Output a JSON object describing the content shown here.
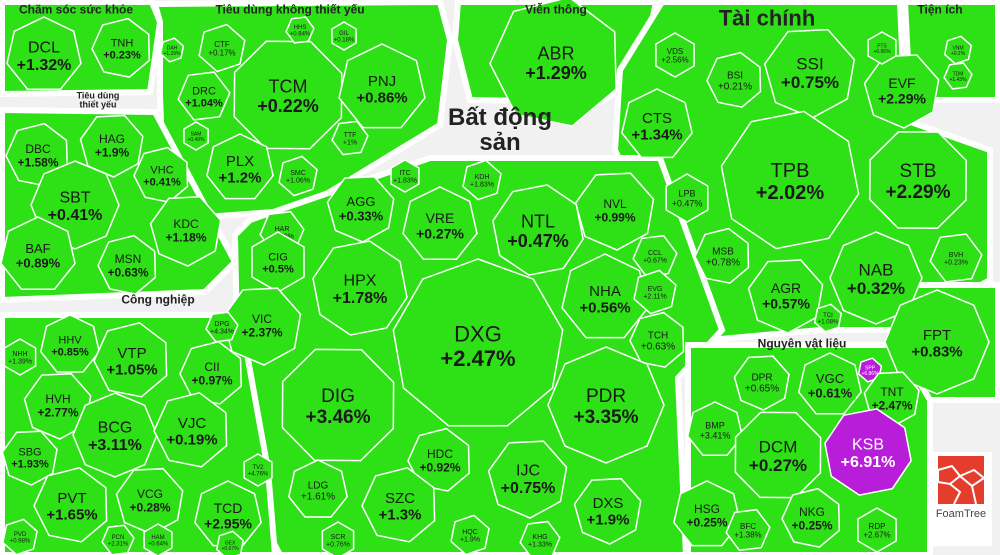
{
  "brand": "FoamTree",
  "colors": {
    "gain": "#2ee016",
    "strong_gain": "#b81dd9",
    "border": "#ffffff",
    "label": "#1a1a1a"
  },
  "sectors": [
    {
      "key": "healthcare",
      "title": "Chăm sóc sức khỏe"
    },
    {
      "key": "nonessential",
      "title": "Tiêu dùng không thiết yếu"
    },
    {
      "key": "telecom",
      "title": "Viễn thông"
    },
    {
      "key": "finance",
      "title": "Tài chính"
    },
    {
      "key": "utilities",
      "title": "Tiện ích"
    },
    {
      "key": "staples",
      "title": "Tiêu dùng thiết yếu"
    },
    {
      "key": "realestate",
      "title": "Bất động sản"
    },
    {
      "key": "industrial",
      "title": "Công nghiệp"
    },
    {
      "key": "materials",
      "title": "Nguyên vật liệu"
    }
  ],
  "chart_data": {
    "type": "treemap",
    "metric": "% change",
    "tiles": [
      {
        "ticker": "DCL",
        "change": "+1.32%",
        "sector": "Chăm sóc sức khỏe"
      },
      {
        "ticker": "TNH",
        "change": "+0.23%",
        "sector": "Chăm sóc sức khỏe"
      },
      {
        "ticker": "TCM",
        "change": "+0.22%",
        "sector": "Tiêu dùng không thiết yếu"
      },
      {
        "ticker": "PNJ",
        "change": "+0.86%",
        "sector": "Tiêu dùng không thiết yếu"
      },
      {
        "ticker": "CTF",
        "change": "+0.17%",
        "sector": "Tiêu dùng không thiết yếu"
      },
      {
        "ticker": "DRC",
        "change": "+1.04%",
        "sector": "Tiêu dùng không thiết yếu"
      },
      {
        "ticker": "PLX",
        "change": "+1.2%",
        "sector": "Tiêu dùng không thiết yếu"
      },
      {
        "ticker": "SMC",
        "change": "+1.06%",
        "sector": "Tiêu dùng không thiết yếu"
      },
      {
        "ticker": "TTF",
        "change": "+1%",
        "sector": "Tiêu dùng không thiết yếu"
      },
      {
        "ticker": "SAM",
        "change": "+0.49%",
        "sector": "Tiêu dùng không thiết yếu"
      },
      {
        "ticker": "DAH",
        "change": "+1.29%",
        "sector": "Tiêu dùng không thiết yếu"
      },
      {
        "ticker": "HHS",
        "change": "+0.84%",
        "sector": "Tiêu dùng không thiết yếu"
      },
      {
        "ticker": "GIL",
        "change": "+0.18%",
        "sector": "Tiêu dùng không thiết yếu"
      },
      {
        "ticker": "ABR",
        "change": "+1.29%",
        "sector": "Viễn thông"
      },
      {
        "ticker": "SSI",
        "change": "+0.75%",
        "sector": "Tài chính"
      },
      {
        "ticker": "VDS",
        "change": "+2.56%",
        "sector": "Tài chính"
      },
      {
        "ticker": "BSI",
        "change": "+0.21%",
        "sector": "Tài chính"
      },
      {
        "ticker": "EVF",
        "change": "+2.29%",
        "sector": "Tài chính"
      },
      {
        "ticker": "CTS",
        "change": "+1.34%",
        "sector": "Tài chính"
      },
      {
        "ticker": "TPB",
        "change": "+2.02%",
        "sector": "Tài chính"
      },
      {
        "ticker": "STB",
        "change": "+2.29%",
        "sector": "Tài chính"
      },
      {
        "ticker": "LPB",
        "change": "+0.47%",
        "sector": "Tài chính"
      },
      {
        "ticker": "MSB",
        "change": "+0.78%",
        "sector": "Tài chính"
      },
      {
        "ticker": "AGR",
        "change": "+0.57%",
        "sector": "Tài chính"
      },
      {
        "ticker": "NAB",
        "change": "+0.32%",
        "sector": "Tài chính"
      },
      {
        "ticker": "TCI",
        "change": "+1.08%",
        "sector": "Tài chính"
      },
      {
        "ticker": "BVH",
        "change": "+0.23%",
        "sector": "Tài chính"
      },
      {
        "ticker": "FTS",
        "change": "+0.96%",
        "sector": "Tài chính"
      },
      {
        "ticker": "VNM",
        "change": "+0.2%",
        "sector": "Tiện ích"
      },
      {
        "ticker": "TDM",
        "change": "+1.43%",
        "sector": "Tiện ích"
      },
      {
        "ticker": "FPT",
        "change": "+0.83%",
        "sector": "Tiện ích"
      },
      {
        "ticker": "DBC",
        "change": "+1.58%",
        "sector": "Tiêu dùng thiết yếu"
      },
      {
        "ticker": "HAG",
        "change": "+1.9%",
        "sector": "Tiêu dùng thiết yếu"
      },
      {
        "ticker": "SBT",
        "change": "+0.41%",
        "sector": "Tiêu dùng thiết yếu"
      },
      {
        "ticker": "VHC",
        "change": "+0.41%",
        "sector": "Tiêu dùng thiết yếu"
      },
      {
        "ticker": "KDC",
        "change": "+1.18%",
        "sector": "Tiêu dùng thiết yếu"
      },
      {
        "ticker": "BAF",
        "change": "+0.89%",
        "sector": "Tiêu dùng thiết yếu"
      },
      {
        "ticker": "MSN",
        "change": "+0.63%",
        "sector": "Tiêu dùng thiết yếu"
      },
      {
        "ticker": "AGG",
        "change": "+0.33%",
        "sector": "Bất động sản"
      },
      {
        "ticker": "ITC",
        "change": "+1.83%",
        "sector": "Bất động sản"
      },
      {
        "ticker": "KDH",
        "change": "+1.83%",
        "sector": "Bất động sản"
      },
      {
        "ticker": "NVL",
        "change": "+0.99%",
        "sector": "Bất động sản"
      },
      {
        "ticker": "VRE",
        "change": "+0.27%",
        "sector": "Bất động sản"
      },
      {
        "ticker": "NTL",
        "change": "+0.47%",
        "sector": "Bất động sản"
      },
      {
        "ticker": "HAR",
        "change": "+0.58%",
        "sector": "Bất động sản"
      },
      {
        "ticker": "CIG",
        "change": "+0.5%",
        "sector": "Bất động sản"
      },
      {
        "ticker": "HPX",
        "change": "+1.78%",
        "sector": "Bất động sản"
      },
      {
        "ticker": "CCL",
        "change": "+0.67%",
        "sector": "Bất động sản"
      },
      {
        "ticker": "NHA",
        "change": "+0.56%",
        "sector": "Bất động sản"
      },
      {
        "ticker": "EVG",
        "change": "+2.11%",
        "sector": "Bất động sản"
      },
      {
        "ticker": "VIC",
        "change": "+2.37%",
        "sector": "Bất động sản"
      },
      {
        "ticker": "DXG",
        "change": "+2.47%",
        "sector": "Bất động sản"
      },
      {
        "ticker": "TCH",
        "change": "+0.63%",
        "sector": "Bất động sản"
      },
      {
        "ticker": "DIG",
        "change": "+3.46%",
        "sector": "Bất động sản"
      },
      {
        "ticker": "PDR",
        "change": "+3.35%",
        "sector": "Bất động sản"
      },
      {
        "ticker": "HDC",
        "change": "+0.92%",
        "sector": "Bất động sản"
      },
      {
        "ticker": "IJC",
        "change": "+0.75%",
        "sector": "Bất động sản"
      },
      {
        "ticker": "LDG",
        "change": "+1.61%",
        "sector": "Bất động sản"
      },
      {
        "ticker": "SZC",
        "change": "+1.3%",
        "sector": "Bất động sản"
      },
      {
        "ticker": "DXS",
        "change": "+1.9%",
        "sector": "Bất động sản"
      },
      {
        "ticker": "SCR",
        "change": "+0.76%",
        "sector": "Bất động sản"
      },
      {
        "ticker": "HQC",
        "change": "+1.9%",
        "sector": "Bất động sản"
      },
      {
        "ticker": "KHG",
        "change": "+1.33%",
        "sector": "Bất động sản"
      },
      {
        "ticker": "HHV",
        "change": "+0.85%",
        "sector": "Công nghiệp"
      },
      {
        "ticker": "VTP",
        "change": "+1.05%",
        "sector": "Công nghiệp"
      },
      {
        "ticker": "DPG",
        "change": "+4.34%",
        "sector": "Công nghiệp"
      },
      {
        "ticker": "NHH",
        "change": "+1.39%",
        "sector": "Công nghiệp"
      },
      {
        "ticker": "CII",
        "change": "+0.97%",
        "sector": "Công nghiệp"
      },
      {
        "ticker": "HVH",
        "change": "+2.77%",
        "sector": "Công nghiệp"
      },
      {
        "ticker": "BCG",
        "change": "+3.11%",
        "sector": "Công nghiệp"
      },
      {
        "ticker": "VJC",
        "change": "+0.19%",
        "sector": "Công nghiệp"
      },
      {
        "ticker": "SBG",
        "change": "+1.93%",
        "sector": "Công nghiệp"
      },
      {
        "ticker": "TV2",
        "change": "+4.76%",
        "sector": "Công nghiệp"
      },
      {
        "ticker": "PVT",
        "change": "+1.65%",
        "sector": "Công nghiệp"
      },
      {
        "ticker": "VCG",
        "change": "+0.28%",
        "sector": "Công nghiệp"
      },
      {
        "ticker": "TCD",
        "change": "+2.95%",
        "sector": "Công nghiệp"
      },
      {
        "ticker": "PVD",
        "change": "+0.98%",
        "sector": "Công nghiệp"
      },
      {
        "ticker": "PCN",
        "change": "+2.31%",
        "sector": "Công nghiệp"
      },
      {
        "ticker": "HAM",
        "change": "+0.64%",
        "sector": "Công nghiệp"
      },
      {
        "ticker": "GEX",
        "change": "+0.67%",
        "sector": "Công nghiệp"
      },
      {
        "ticker": "DPR",
        "change": "+0.65%",
        "sector": "Nguyên vật liệu"
      },
      {
        "ticker": "VGC",
        "change": "+0.61%",
        "sector": "Nguyên vật liệu"
      },
      {
        "ticker": "SPP",
        "change": "+6.86%",
        "sector": "Nguyên vật liệu"
      },
      {
        "ticker": "TNT",
        "change": "+2.47%",
        "sector": "Nguyên vật liệu"
      },
      {
        "ticker": "BMP",
        "change": "+3.41%",
        "sector": "Nguyên vật liệu"
      },
      {
        "ticker": "KSB",
        "change": "+6.91%",
        "sector": "Nguyên vật liệu"
      },
      {
        "ticker": "DCM",
        "change": "+0.27%",
        "sector": "Nguyên vật liệu"
      },
      {
        "ticker": "HSG",
        "change": "+0.25%",
        "sector": "Nguyên vật liệu"
      },
      {
        "ticker": "NKG",
        "change": "+0.25%",
        "sector": "Nguyên vật liệu"
      },
      {
        "ticker": "BFC",
        "change": "+1.38%",
        "sector": "Nguyên vật liệu"
      },
      {
        "ticker": "RDP",
        "change": "+2.67%",
        "sector": "Nguyên vật liệu"
      }
    ]
  }
}
